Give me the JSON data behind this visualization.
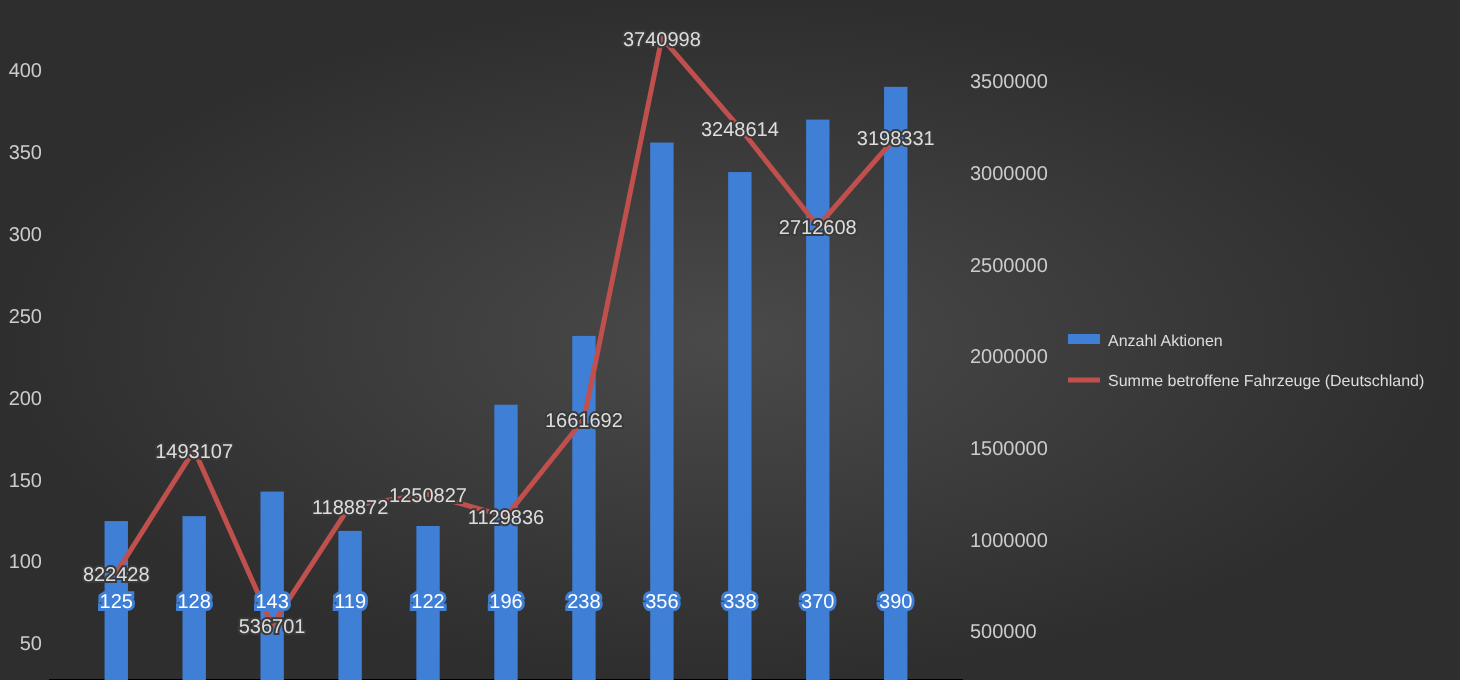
{
  "chart_data": {
    "type": "bar",
    "categories": [
      null,
      null,
      null,
      null,
      null,
      null,
      null,
      null,
      null,
      null,
      null
    ],
    "series": [
      {
        "name": "Anzahl Aktionen",
        "color": "#3f7fd6",
        "values": [
          125,
          128,
          143,
          119,
          122,
          196,
          238,
          356,
          338,
          370,
          390
        ]
      },
      {
        "name": "Summe betroffene Fahrzeuge (Deutschland)",
        "type": "line",
        "axis": "y2",
        "color": "#c0504d",
        "values": [
          822428,
          1493107,
          536701,
          1188872,
          1250827,
          1129836,
          1661692,
          3740998,
          3248614,
          2712608,
          3198331
        ]
      }
    ],
    "ylim": [
      28,
      443
    ],
    "yticks": [
      50,
      100,
      150,
      200,
      250,
      300,
      350,
      400
    ],
    "y2lim": [
      238000,
      3947000
    ],
    "y2ticks": [
      500000,
      1000000,
      1500000,
      2000000,
      2500000,
      3000000,
      3500000
    ],
    "data_labels": true,
    "legend": "right"
  }
}
